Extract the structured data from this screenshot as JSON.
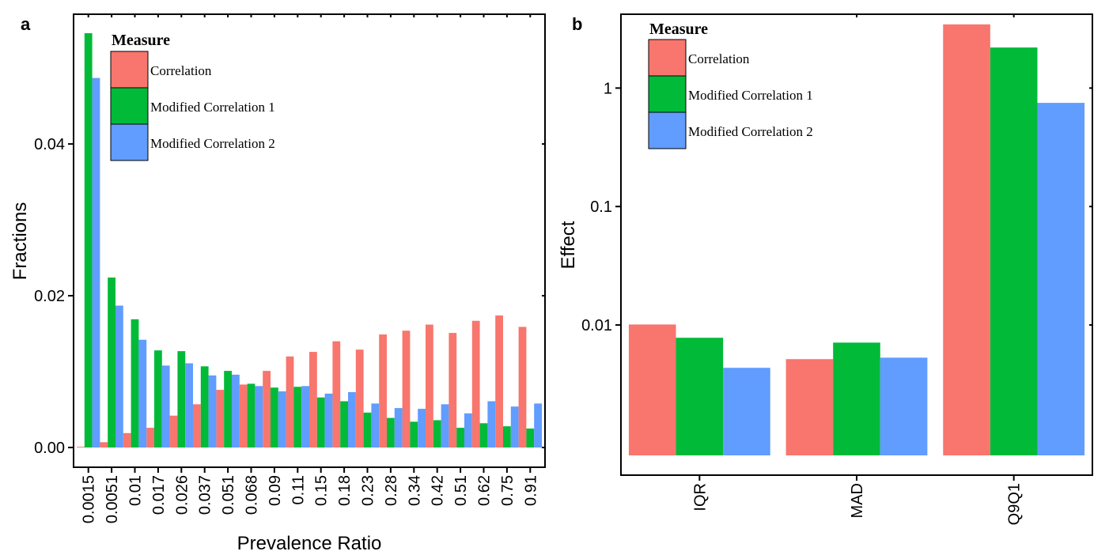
{
  "colors": {
    "correlation": "#F8766D",
    "modified_correlation_1": "#00BA38",
    "modified_correlation_2": "#619CFF",
    "axis": "#000000"
  },
  "panel_a": {
    "label": "a",
    "legend": {
      "title": "Measure",
      "items": [
        "Correlation",
        "Modified Correlation 1",
        "Modified Correlation 2"
      ]
    }
  },
  "panel_b": {
    "label": "b",
    "legend": {
      "title": "Measure",
      "items": [
        "Correlation",
        "Modified Correlation 1",
        "Modified Correlation 2"
      ]
    }
  },
  "chart_data": [
    {
      "type": "bar",
      "panel": "a",
      "xlabel": "Prevalence Ratio",
      "ylabel": "Fractions",
      "ylim": [
        -0.0026,
        0.0571
      ],
      "yticks": [
        0.0,
        0.02,
        0.04
      ],
      "ytick_labels": [
        "0.00",
        "0.02",
        "0.04"
      ],
      "grid": false,
      "legend_position": "top-left",
      "categories": [
        "0.0015",
        "0.0051",
        "0.01",
        "0.017",
        "0.026",
        "0.037",
        "0.051",
        "0.068",
        "0.09",
        "0.11",
        "0.15",
        "0.18",
        "0.23",
        "0.28",
        "0.34",
        "0.42",
        "0.51",
        "0.62",
        "0.75",
        "0.91"
      ],
      "series": [
        {
          "name": "Correlation",
          "values": [
            0.0001,
            0.0007,
            0.0019,
            0.0026,
            0.0042,
            0.0057,
            0.0076,
            0.0083,
            0.0101,
            0.012,
            0.0126,
            0.014,
            0.0129,
            0.0149,
            0.0154,
            0.0162,
            0.0151,
            0.0167,
            0.0174,
            0.0159
          ]
        },
        {
          "name": "Modified Correlation 1",
          "values": [
            0.0546,
            0.0224,
            0.0169,
            0.0128,
            0.0127,
            0.0107,
            0.0101,
            0.0084,
            0.0079,
            0.008,
            0.0066,
            0.0061,
            0.0046,
            0.0039,
            0.0034,
            0.0036,
            0.0026,
            0.0032,
            0.0028,
            0.0025
          ]
        },
        {
          "name": "Modified Correlation 2",
          "values": [
            0.0487,
            0.0187,
            0.0142,
            0.0108,
            0.0111,
            0.0095,
            0.0096,
            0.0081,
            0.0074,
            0.0081,
            0.0071,
            0.0073,
            0.0058,
            0.0052,
            0.0051,
            0.0057,
            0.0045,
            0.0061,
            0.0054,
            0.0058
          ]
        }
      ]
    },
    {
      "type": "bar",
      "panel": "b",
      "xlabel": "",
      "ylabel": "Effect",
      "yscale": "log",
      "ylim": [
        0.00054,
        4.2
      ],
      "yticks": [
        0.01,
        0.1,
        1
      ],
      "ytick_labels": [
        "0.01",
        "0.1",
        "1"
      ],
      "grid": false,
      "legend_position": "top-left",
      "categories": [
        "IQR",
        "MAD",
        "Q9Q1"
      ],
      "series": [
        {
          "name": "Correlation",
          "values": [
            0.0101,
            0.00515,
            3.45
          ]
        },
        {
          "name": "Modified Correlation 1",
          "values": [
            0.0078,
            0.0071,
            2.2
          ]
        },
        {
          "name": "Modified Correlation 2",
          "values": [
            0.00435,
            0.0053,
            0.75
          ]
        }
      ]
    }
  ]
}
